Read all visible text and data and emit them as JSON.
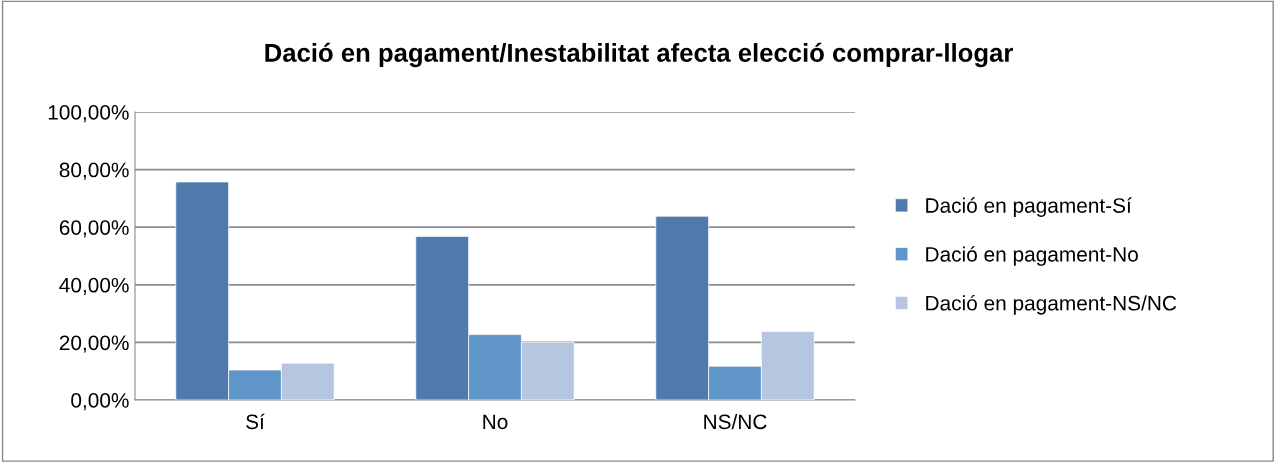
{
  "chart_data": {
    "type": "bar",
    "title": "Dació en pagament/Inestabilitat afecta elecció comprar-llogar",
    "categories": [
      "Sí",
      "No",
      "NS/NC"
    ],
    "series": [
      {
        "name": "Dació en pagament-Sí",
        "color": "#4f7bac",
        "values": [
          75.7,
          56.8,
          63.8
        ]
      },
      {
        "name": "Dació en pagament-No",
        "color": "#5f95c9",
        "values": [
          10.4,
          22.7,
          11.7
        ]
      },
      {
        "name": "Dació en pagament-NS/NC",
        "color": "#b7c6e0",
        "values": [
          12.8,
          20,
          23.8
        ]
      }
    ],
    "ylim": [
      0,
      100
    ],
    "yticks": [
      {
        "value": 0,
        "label": "0,00%"
      },
      {
        "value": 20,
        "label": "20,00%"
      },
      {
        "value": 40,
        "label": "40,00%"
      },
      {
        "value": 60,
        "label": "60,00%"
      },
      {
        "value": 80,
        "label": "80,00%"
      },
      {
        "value": 100,
        "label": "100,00%"
      }
    ],
    "grid": "y",
    "legend": "right"
  }
}
